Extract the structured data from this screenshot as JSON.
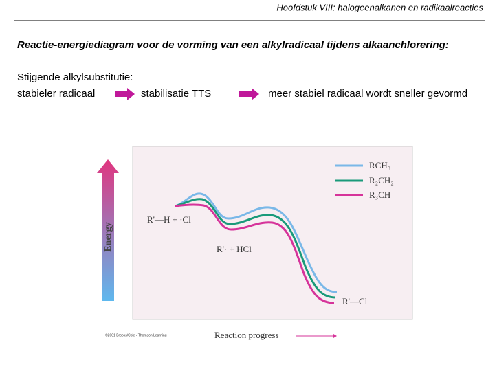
{
  "header": {
    "title": "Hoofdstuk VIII: halogeenalkanen en radikaalreacties"
  },
  "slide": {
    "title": "Reactie-energiediagram voor de vorming van een alkylradicaal tijdens alkaanchlorering:",
    "intro": "Stijgende alkylsubstitutie:",
    "flow": [
      "stabieler radicaal",
      "stabilisatie TTS",
      "meer stabiel radicaal wordt sneller gevormd"
    ]
  },
  "diagram": {
    "y_label": "Energy",
    "x_label": "Reaction progress",
    "legend": [
      "RCH₃",
      "R₂CH₂",
      "R₃CH"
    ],
    "labels": [
      "R'—H + ·Cl",
      "R'· + HCl",
      "R'—Cl"
    ],
    "credit": "©2001 Brooks/Cole - Thomson Learning"
  }
}
